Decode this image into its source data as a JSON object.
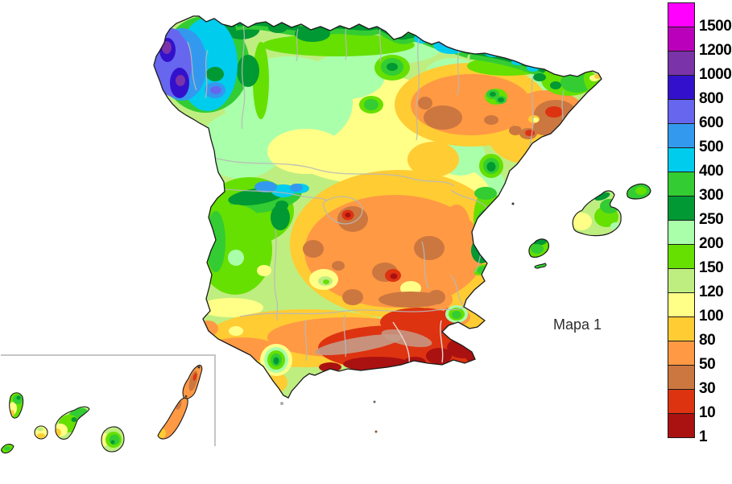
{
  "caption": "Mapa 1",
  "legend": {
    "description": "color-scale",
    "bands": [
      {
        "color": "#FF00FF",
        "label": "1500"
      },
      {
        "color": "#BB00BB",
        "label": "1200"
      },
      {
        "color": "#7A33A8",
        "label": "1000"
      },
      {
        "color": "#3311CC",
        "label": "800"
      },
      {
        "color": "#6666EE",
        "label": "600"
      },
      {
        "color": "#3399EE",
        "label": "500"
      },
      {
        "color": "#00CCEE",
        "label": "400"
      },
      {
        "color": "#33CC33",
        "label": "300"
      },
      {
        "color": "#009933",
        "label": "250"
      },
      {
        "color": "#AAFFAA",
        "label": "200"
      },
      {
        "color": "#66E000",
        "label": "150"
      },
      {
        "color": "#BFEE80",
        "label": "120"
      },
      {
        "color": "#FFFF88",
        "label": "100"
      },
      {
        "color": "#FFCC33",
        "label": "80"
      },
      {
        "color": "#FF9944",
        "label": "50"
      },
      {
        "color": "#CC7740",
        "label": "30"
      },
      {
        "color": "#DD3311",
        "label": "10"
      },
      {
        "color": "#AA1111",
        "label": "1"
      }
    ]
  },
  "colors": {
    "coastline": "#1a1a1a",
    "admin_border": "#b9b9b9",
    "inset_border": "#c6c6c6",
    "sea": "#ffffff"
  }
}
